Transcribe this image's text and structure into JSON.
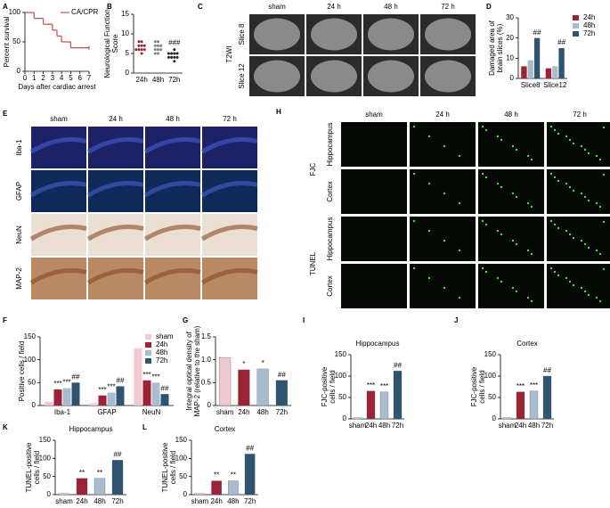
{
  "image_panels": [
    {
      "label": "C",
      "group": "T2WI",
      "columns": [
        "sham",
        "24 h",
        "48 h",
        "72 h"
      ],
      "rows": [
        "Slice 8",
        "Slice 12"
      ]
    },
    {
      "label": "E",
      "columns": [
        "sham",
        "24 h",
        "48 h",
        "72 h"
      ],
      "rows": [
        "Iba-1",
        "GFAP",
        "NeuN",
        "MAP-2"
      ]
    },
    {
      "label": "H",
      "groups": [
        "FJC",
        "TUNEL"
      ],
      "columns": [
        "sham",
        "24 h",
        "48 h",
        "72 h"
      ],
      "rows": [
        "Hippocampus",
        "Cortex",
        "Hippocampus",
        "Cortex"
      ]
    }
  ],
  "chart_data": [
    {
      "type": "line",
      "label": "A",
      "ylabel": [
        "Percent survival"
      ],
      "xlabel": "Days after cardiac arrest",
      "x": [
        0,
        1,
        2,
        3,
        3.5,
        4,
        5,
        7
      ],
      "series": [
        {
          "name": "CA/CPR",
          "color": "#c0504d",
          "values": [
            100,
            90,
            80,
            70,
            60,
            50,
            40,
            40
          ]
        }
      ],
      "xlim": [
        0,
        7
      ],
      "xticks": [
        0,
        1,
        2,
        3,
        4,
        5,
        6,
        7
      ],
      "ylim": [
        0,
        100
      ],
      "yticks": [
        0,
        50,
        100
      ],
      "legend": "top-right"
    },
    {
      "type": "dot",
      "label": "B",
      "ylabel": [
        "Neurological Function",
        "Score"
      ],
      "categories": [
        "24h",
        "48h",
        "72h"
      ],
      "colors": [
        "#9b2335",
        "#7f7f7f",
        "#222222"
      ],
      "points": [
        [
          8,
          8,
          7,
          7,
          7,
          6,
          6,
          6,
          6,
          5
        ],
        [
          8,
          8,
          7,
          7,
          7,
          6,
          6,
          6,
          5,
          5
        ],
        [
          6,
          5,
          5,
          5,
          5,
          4,
          4,
          4,
          4,
          3
        ]
      ],
      "marks": [
        null,
        null,
        "###"
      ],
      "ylim": [
        0,
        15
      ],
      "yticks": [
        0,
        5,
        10,
        15
      ]
    },
    {
      "type": "bar",
      "label": "D",
      "ylabel": [
        "Damaged area of",
        "brain slices (%)"
      ],
      "categories": [
        "Slice8",
        "Slice12"
      ],
      "series": [
        {
          "name": "24h",
          "color": "#9b2335",
          "values": [
            6,
            5
          ],
          "marks": [
            null,
            null
          ]
        },
        {
          "name": "48h",
          "color": "#a9bccf",
          "values": [
            9,
            6
          ],
          "marks": [
            null,
            null
          ]
        },
        {
          "name": "72h",
          "color": "#2e5470",
          "values": [
            20,
            15
          ],
          "marks": [
            "##",
            "##"
          ]
        }
      ],
      "ylim": [
        0,
        30
      ],
      "yticks": [
        0,
        10,
        20,
        30
      ],
      "legend": "right"
    },
    {
      "type": "bar",
      "label": "F",
      "ylabel": [
        "Positive cells / field"
      ],
      "categories": [
        "Iba-1",
        "GFAP",
        "NeuN"
      ],
      "series": [
        {
          "name": "sham",
          "color": "#f2c9d2",
          "values": [
            8,
            5,
            125
          ],
          "marks": [
            null,
            null,
            null
          ]
        },
        {
          "name": "24h",
          "color": "#9b2335",
          "values": [
            35,
            22,
            55
          ],
          "marks": [
            "***",
            "***",
            "***"
          ]
        },
        {
          "name": "48h",
          "color": "#a9bccf",
          "values": [
            38,
            28,
            50
          ],
          "marks": [
            "***",
            "***",
            "***"
          ]
        },
        {
          "name": "72h",
          "color": "#2e5470",
          "values": [
            50,
            42,
            25
          ],
          "marks": [
            "##",
            "##",
            "##"
          ]
        }
      ],
      "ylim": [
        0,
        150
      ],
      "yticks": [
        0,
        50,
        100,
        150
      ],
      "legend": "top-right"
    },
    {
      "type": "bar",
      "label": "G",
      "ylabel": [
        "Integral optical density of",
        "MAP-2 (relative to the sham)"
      ],
      "categories": [
        "sham",
        "24h",
        "48h",
        "72h"
      ],
      "values": [
        1.05,
        0.78,
        0.8,
        0.55
      ],
      "marks": [
        null,
        "*",
        "*",
        "##"
      ],
      "colors": [
        "#f2c9d2",
        "#9b2335",
        "#a9bccf",
        "#2e5470"
      ],
      "ylim": [
        0,
        1.5
      ],
      "yticks": [
        0,
        0.5,
        {
          "value": 1,
          "label": "1.0"
        },
        1.5
      ]
    },
    {
      "type": "bar",
      "label": "I",
      "title": "Hippocampus",
      "ylabel": [
        "FJC-positive",
        "cells / field"
      ],
      "categories": [
        "sham",
        "24h",
        "48h",
        "72h"
      ],
      "values": [
        3,
        65,
        63,
        112
      ],
      "marks": [
        null,
        "***",
        "***",
        "##"
      ],
      "colors": [
        "#f2c9d2",
        "#9b2335",
        "#a9bccf",
        "#2e5470"
      ],
      "ylim": [
        0,
        150
      ],
      "yticks": [
        0,
        50,
        100,
        150
      ]
    },
    {
      "type": "bar",
      "label": "J",
      "title": "Cortex",
      "ylabel": [
        "FJC-positive",
        "cells / field"
      ],
      "categories": [
        "sham",
        "24h",
        "48h",
        "72h"
      ],
      "values": [
        3,
        63,
        65,
        100
      ],
      "marks": [
        null,
        "***",
        "***",
        "##"
      ],
      "colors": [
        "#f2c9d2",
        "#9b2335",
        "#a9bccf",
        "#2e5470"
      ],
      "ylim": [
        0,
        150
      ],
      "yticks": [
        0,
        50,
        100,
        150
      ]
    },
    {
      "type": "bar",
      "label": "K",
      "title": "Hippocampus",
      "ylabel": [
        "TUNEL-positive",
        "cells / field"
      ],
      "categories": [
        "sham",
        "24h",
        "48h",
        "72h"
      ],
      "values": [
        3,
        45,
        45,
        95
      ],
      "marks": [
        null,
        "**",
        "**",
        "##"
      ],
      "colors": [
        "#f2c9d2",
        "#9b2335",
        "#a9bccf",
        "#2e5470"
      ],
      "ylim": [
        0,
        150
      ],
      "yticks": [
        0,
        50,
        100,
        150
      ]
    },
    {
      "type": "bar",
      "label": "L",
      "title": "Cortex",
      "ylabel": [
        "TUNEL-positive",
        "cells / field"
      ],
      "categories": [
        "sham",
        "24h",
        "48h",
        "72h"
      ],
      "values": [
        3,
        38,
        38,
        112
      ],
      "marks": [
        null,
        "**",
        "**",
        "##"
      ],
      "colors": [
        "#f2c9d2",
        "#9b2335",
        "#a9bccf",
        "#2e5470"
      ],
      "ylim": [
        0,
        150
      ],
      "yticks": [
        0,
        50,
        100,
        150
      ]
    }
  ]
}
